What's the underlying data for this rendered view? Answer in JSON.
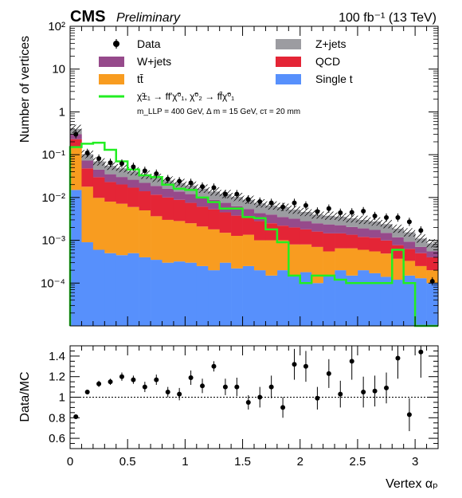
{
  "header": {
    "experiment": "CMS",
    "tag": "Preliminary",
    "luminosity": "100 fb⁻¹ (13 TeV)"
  },
  "chart_data": [
    {
      "type": "area",
      "panel": "main",
      "stacked": true,
      "log_scale": true,
      "xlim": [
        0,
        3.2
      ],
      "ylim": [
        1e-05,
        100
      ],
      "ylabel": "Number of vertices",
      "y_tick_labels": [
        "10⁻⁴",
        "10⁻³",
        "10⁻²",
        "10⁻¹",
        "1",
        "10",
        "10²"
      ],
      "bin_edges": [
        0,
        0.1,
        0.2,
        0.3,
        0.4,
        0.5,
        0.6,
        0.7,
        0.8,
        0.9,
        1.0,
        1.1,
        1.2,
        1.3,
        1.4,
        1.5,
        1.6,
        1.7,
        1.8,
        1.9,
        2.0,
        2.1,
        2.2,
        2.3,
        2.4,
        2.5,
        2.6,
        2.7,
        2.8,
        2.9,
        3.0,
        3.1,
        3.2
      ],
      "legend": [
        "Data",
        "Z+jets",
        "W+jets",
        "QCD",
        "tt̄",
        "Single t",
        "χ̃±₁ → ff′χ̃⁰₁,  χ̃⁰₂ → ff̄χ̃⁰₁"
      ],
      "legend_note": "m_LLP = 400 GeV,  Δ m = 15 GeV, cτ = 20 mm",
      "series": [
        {
          "name": "Single t",
          "color": "#5790fc",
          "values": [
            0.015,
            0.0009,
            0.0006,
            0.0005,
            0.00045,
            0.0005,
            0.0004,
            0.00035,
            0.0003,
            0.00032,
            0.0003,
            0.00025,
            0.0002,
            0.0003,
            0.00022,
            0.00025,
            0.0002,
            0.00015,
            0.0002,
            0.00015,
            0.00018,
            0.0001,
            0.00015,
            0.0002,
            0.00015,
            0.0002,
            0.00017,
            0.00014,
            0.00012,
            0.00015,
            0.00013,
            0.0001
          ]
        },
        {
          "name": "tt̄",
          "color": "#f89c20",
          "values": [
            0.135,
            0.017,
            0.0092,
            0.0075,
            0.0067,
            0.0055,
            0.0046,
            0.0033,
            0.0027,
            0.0025,
            0.0022,
            0.00185,
            0.0016,
            0.0012,
            0.00105,
            0.0011,
            0.0008,
            0.00085,
            0.0008,
            0.00065,
            0.00062,
            0.0006,
            0.0004,
            0.00045,
            0.0005,
            0.0004,
            0.00038,
            0.00035,
            0.00025,
            0.00018,
            0.00012,
            0.0001
          ]
        },
        {
          "name": "QCD",
          "color": "#e42536",
          "values": [
            0.08,
            0.03,
            0.02,
            0.015,
            0.013,
            0.011,
            0.009,
            0.008,
            0.007,
            0.006,
            0.005,
            0.004,
            0.0035,
            0.003,
            0.0025,
            0.002,
            0.0018,
            0.0015,
            0.0012,
            0.0012,
            0.001,
            0.0009,
            0.0009,
            0.0008,
            0.0007,
            0.0006,
            0.0006,
            0.0005,
            0.0004,
            0.0003,
            0.00025,
            0.0002
          ]
        },
        {
          "name": "W+jets",
          "color": "#964a8b",
          "values": [
            0.07,
            0.025,
            0.015,
            0.012,
            0.01,
            0.009,
            0.008,
            0.007,
            0.006,
            0.005,
            0.0045,
            0.004,
            0.0035,
            0.003,
            0.0025,
            0.002,
            0.0015,
            0.0015,
            0.0013,
            0.0012,
            0.001,
            0.0009,
            0.0009,
            0.0008,
            0.0007,
            0.0007,
            0.0006,
            0.0005,
            0.0004,
            0.0003,
            0.0002,
            0.00015
          ]
        },
        {
          "name": "Z+jets",
          "color": "#9c9ca1",
          "values": [
            0.1,
            0.03,
            0.025,
            0.02,
            0.018,
            0.015,
            0.012,
            0.01,
            0.009,
            0.008,
            0.007,
            0.006,
            0.005,
            0.0045,
            0.004,
            0.0035,
            0.003,
            0.0025,
            0.0025,
            0.002,
            0.0018,
            0.0015,
            0.0014,
            0.0013,
            0.0012,
            0.0011,
            0.001,
            0.0009,
            0.0007,
            0.0006,
            0.0004,
            0.0003
          ]
        }
      ],
      "signal": {
        "name": "χ̃±₁ → ff′χ̃⁰₁,  χ̃⁰₂ → ff̄χ̃⁰₁",
        "color": "#22ee22",
        "values": [
          0.15,
          0.18,
          0.19,
          0.13,
          0.07,
          0.045,
          0.033,
          0.03,
          0.02,
          0.016,
          0.015,
          0.01,
          0.0078,
          0.0055,
          0.0055,
          0.0035,
          0.0033,
          0.0018,
          0.0009,
          0.00015,
          0.0001,
          0.00015,
          0.00015,
          0.00012,
          0.0001,
          0.0001,
          0.0001,
          0.0001,
          0.0006,
          0.0001,
          0,
          0
        ]
      },
      "data_points": [
        {
          "x": 0.05,
          "y": 0.3
        },
        {
          "x": 0.15,
          "y": 0.11
        },
        {
          "x": 0.25,
          "y": 0.081
        },
        {
          "x": 0.35,
          "y": 0.065
        },
        {
          "x": 0.45,
          "y": 0.062
        },
        {
          "x": 0.55,
          "y": 0.052
        },
        {
          "x": 0.65,
          "y": 0.042
        },
        {
          "x": 0.75,
          "y": 0.036
        },
        {
          "x": 0.85,
          "y": 0.027
        },
        {
          "x": 0.95,
          "y": 0.024
        },
        {
          "x": 1.05,
          "y": 0.022
        },
        {
          "x": 1.15,
          "y": 0.018
        },
        {
          "x": 1.25,
          "y": 0.017
        },
        {
          "x": 1.35,
          "y": 0.012
        },
        {
          "x": 1.45,
          "y": 0.012
        },
        {
          "x": 1.55,
          "y": 0.009
        },
        {
          "x": 1.65,
          "y": 0.008
        },
        {
          "x": 1.75,
          "y": 0.0075
        },
        {
          "x": 1.85,
          "y": 0.006
        },
        {
          "x": 1.95,
          "y": 0.0075
        },
        {
          "x": 2.05,
          "y": 0.0065
        },
        {
          "x": 2.15,
          "y": 0.0047
        },
        {
          "x": 2.25,
          "y": 0.0055
        },
        {
          "x": 2.35,
          "y": 0.0044
        },
        {
          "x": 2.45,
          "y": 0.0045
        },
        {
          "x": 2.55,
          "y": 0.0048
        },
        {
          "x": 2.65,
          "y": 0.0037
        },
        {
          "x": 2.75,
          "y": 0.0034
        },
        {
          "x": 2.85,
          "y": 0.0034
        },
        {
          "x": 2.95,
          "y": 0.0027
        },
        {
          "x": 3.05,
          "y": 0.0017
        },
        {
          "x": 3.15,
          "y": 0.00011
        }
      ]
    },
    {
      "type": "scatter",
      "panel": "ratio",
      "xlim": [
        0,
        3.2
      ],
      "ylim": [
        0.5,
        1.5
      ],
      "xlabel": "Vertex   αₚ",
      "ylabel": "Data/MC",
      "reference_line": 1,
      "x_ticks": [
        0,
        0.5,
        1,
        1.5,
        2,
        2.5,
        3
      ],
      "x_tick_labels": [
        "0",
        "0.5",
        "1",
        "1.5",
        "2",
        "2.5",
        "3"
      ],
      "y_ticks": [
        0.6,
        0.8,
        1,
        1.2,
        1.4
      ],
      "y_tick_labels": [
        "0.6",
        "0.8",
        "1",
        "1.2",
        "1.4"
      ],
      "points": [
        {
          "x": 0.05,
          "y": 0.81,
          "err": 0.01
        },
        {
          "x": 0.15,
          "y": 1.05,
          "err": 0.02
        },
        {
          "x": 0.25,
          "y": 1.13,
          "err": 0.03
        },
        {
          "x": 0.35,
          "y": 1.15,
          "err": 0.03
        },
        {
          "x": 0.45,
          "y": 1.2,
          "err": 0.04
        },
        {
          "x": 0.55,
          "y": 1.17,
          "err": 0.04
        },
        {
          "x": 0.65,
          "y": 1.1,
          "err": 0.05
        },
        {
          "x": 0.75,
          "y": 1.17,
          "err": 0.05
        },
        {
          "x": 0.85,
          "y": 1.05,
          "err": 0.05
        },
        {
          "x": 0.95,
          "y": 1.03,
          "err": 0.06
        },
        {
          "x": 1.05,
          "y": 1.19,
          "err": 0.07
        },
        {
          "x": 1.15,
          "y": 1.11,
          "err": 0.07
        },
        {
          "x": 1.25,
          "y": 1.3,
          "err": 0.05
        },
        {
          "x": 1.35,
          "y": 1.1,
          "err": 0.08
        },
        {
          "x": 1.45,
          "y": 1.1,
          "err": 0.09
        },
        {
          "x": 1.55,
          "y": 0.95,
          "err": 0.07
        },
        {
          "x": 1.65,
          "y": 1.0,
          "err": 0.1
        },
        {
          "x": 1.75,
          "y": 1.1,
          "err": 0.11
        },
        {
          "x": 1.85,
          "y": 0.9,
          "err": 0.1
        },
        {
          "x": 1.95,
          "y": 1.32,
          "err": 0.15
        },
        {
          "x": 2.05,
          "y": 1.3,
          "err": 0.15
        },
        {
          "x": 2.15,
          "y": 0.99,
          "err": 0.11
        },
        {
          "x": 2.25,
          "y": 1.23,
          "err": 0.14
        },
        {
          "x": 2.35,
          "y": 1.03,
          "err": 0.13
        },
        {
          "x": 2.45,
          "y": 1.35,
          "err": 0.18
        },
        {
          "x": 2.55,
          "y": 1.05,
          "err": 0.15
        },
        {
          "x": 2.65,
          "y": 1.06,
          "err": 0.15
        },
        {
          "x": 2.75,
          "y": 1.09,
          "err": 0.15
        },
        {
          "x": 2.85,
          "y": 1.38,
          "err": 0.2
        },
        {
          "x": 2.95,
          "y": 0.83,
          "err": 0.16
        },
        {
          "x": 3.05,
          "y": 1.44,
          "err": 0.25
        }
      ]
    }
  ]
}
